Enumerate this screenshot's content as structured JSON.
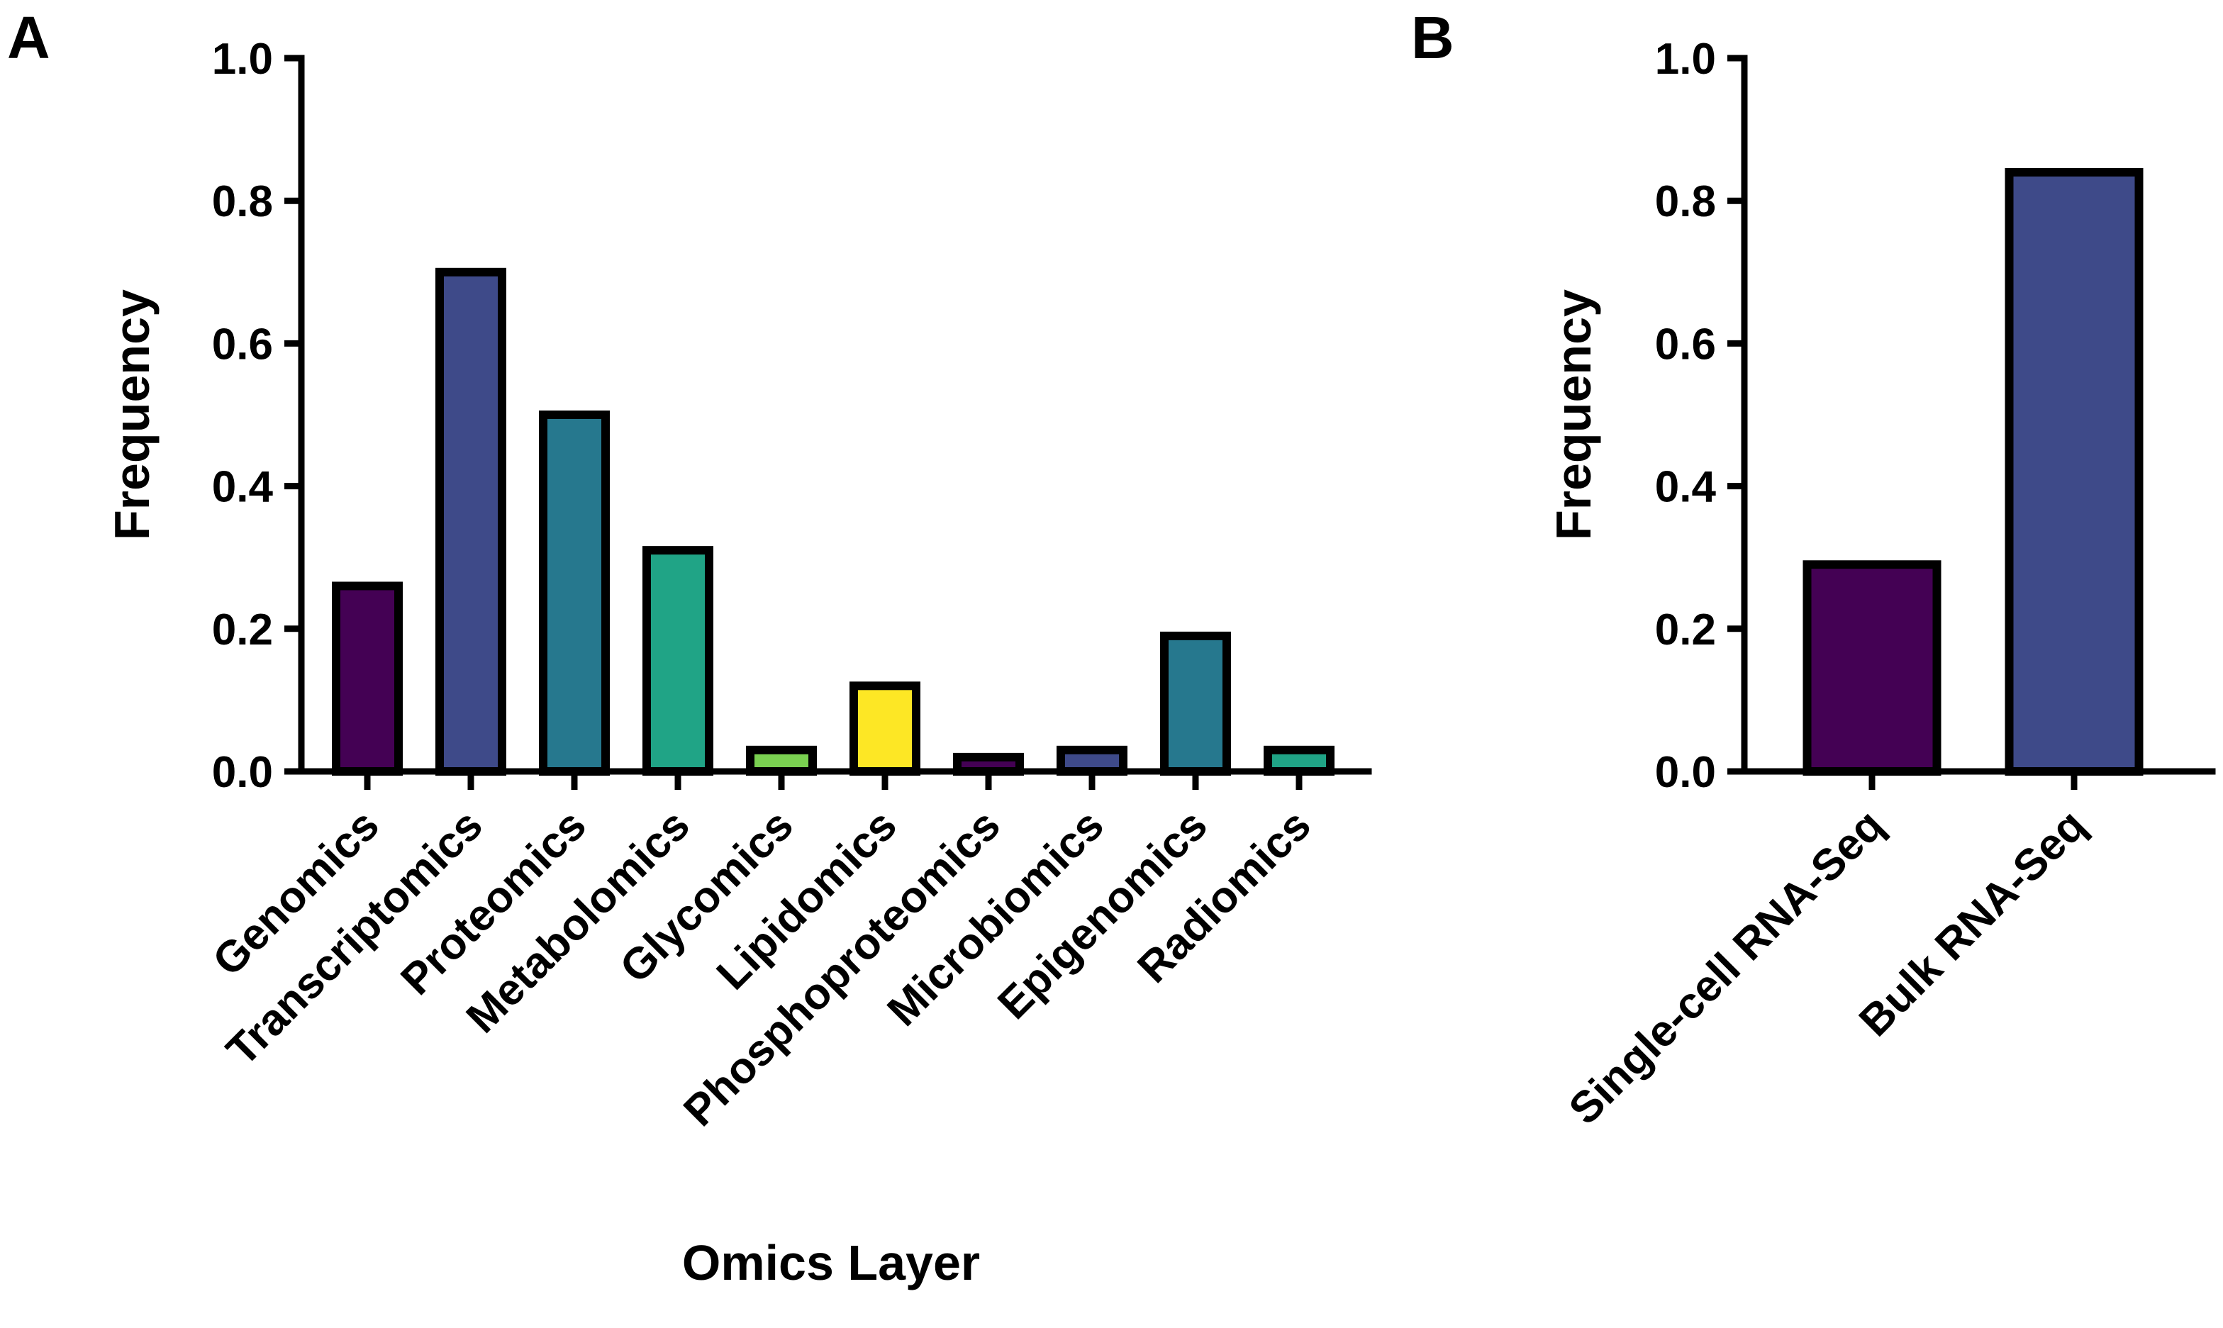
{
  "chart_data": [
    {
      "panel_label": "A",
      "type": "bar",
      "title": "",
      "xlabel": "Omics Layer",
      "ylabel": "Frequency",
      "ylim": [
        0,
        1.0
      ],
      "yticks": [
        "0.0",
        "0.2",
        "0.4",
        "0.6",
        "0.8",
        "1.0"
      ],
      "grid": false,
      "categories": [
        "Genomics",
        "Transcriptomics",
        "Proteomics",
        "Metabolomics",
        "Glycomics",
        "Lipidomics",
        "Phosphoproteomics",
        "Microbiomics",
        "Epigenomics",
        "Radiomics"
      ],
      "values": [
        0.26,
        0.7,
        0.5,
        0.31,
        0.03,
        0.12,
        0.02,
        0.03,
        0.19,
        0.03
      ],
      "colors": [
        "#440154",
        "#3e4a89",
        "#26788e",
        "#20a486",
        "#7ad151",
        "#fde725",
        "#440154",
        "#3e4a89",
        "#26788e",
        "#20a486"
      ]
    },
    {
      "panel_label": "B",
      "type": "bar",
      "title": "",
      "xlabel": "",
      "ylabel": "Frequency",
      "ylim": [
        0,
        1.0
      ],
      "yticks": [
        "0.0",
        "0.2",
        "0.4",
        "0.6",
        "0.8",
        "1.0"
      ],
      "grid": false,
      "categories": [
        "Single-cell RNA-Seq",
        "Bulk RNA-Seq"
      ],
      "values": [
        0.29,
        0.84
      ],
      "colors": [
        "#440154",
        "#3e4a89"
      ]
    }
  ]
}
